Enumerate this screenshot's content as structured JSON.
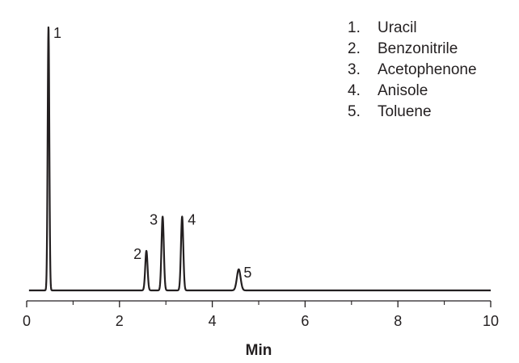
{
  "chart_data": {
    "type": "line",
    "title": "",
    "xlabel": "Min",
    "ylabel": "",
    "xlim": [
      0,
      10
    ],
    "x_ticks": [
      0,
      2,
      4,
      6,
      8,
      10
    ],
    "x_minor_ticks": [
      1,
      3,
      5,
      7,
      9
    ],
    "grid": false,
    "legend_position": "top-right",
    "line_color": "#231f20",
    "peaks": [
      {
        "label": "1",
        "name": "Uracil",
        "time": 0.47,
        "relative_height": 1.0,
        "width": 0.018
      },
      {
        "label": "2",
        "name": "Benzonitrile",
        "time": 2.58,
        "relative_height": 0.15,
        "width": 0.025
      },
      {
        "label": "3",
        "name": "Acetophenone",
        "time": 2.93,
        "relative_height": 0.28,
        "width": 0.025
      },
      {
        "label": "4",
        "name": "Anisole",
        "time": 3.35,
        "relative_height": 0.28,
        "width": 0.025
      },
      {
        "label": "5",
        "name": "Toluene",
        "time": 4.57,
        "relative_height": 0.08,
        "width": 0.04
      }
    ],
    "legend": [
      {
        "number": "1.",
        "name": "Uracil"
      },
      {
        "number": "2.",
        "name": "Benzonitrile"
      },
      {
        "number": "3.",
        "name": "Acetophenone"
      },
      {
        "number": "4.",
        "name": "Anisole"
      },
      {
        "number": "5.",
        "name": "Toluene"
      }
    ]
  }
}
